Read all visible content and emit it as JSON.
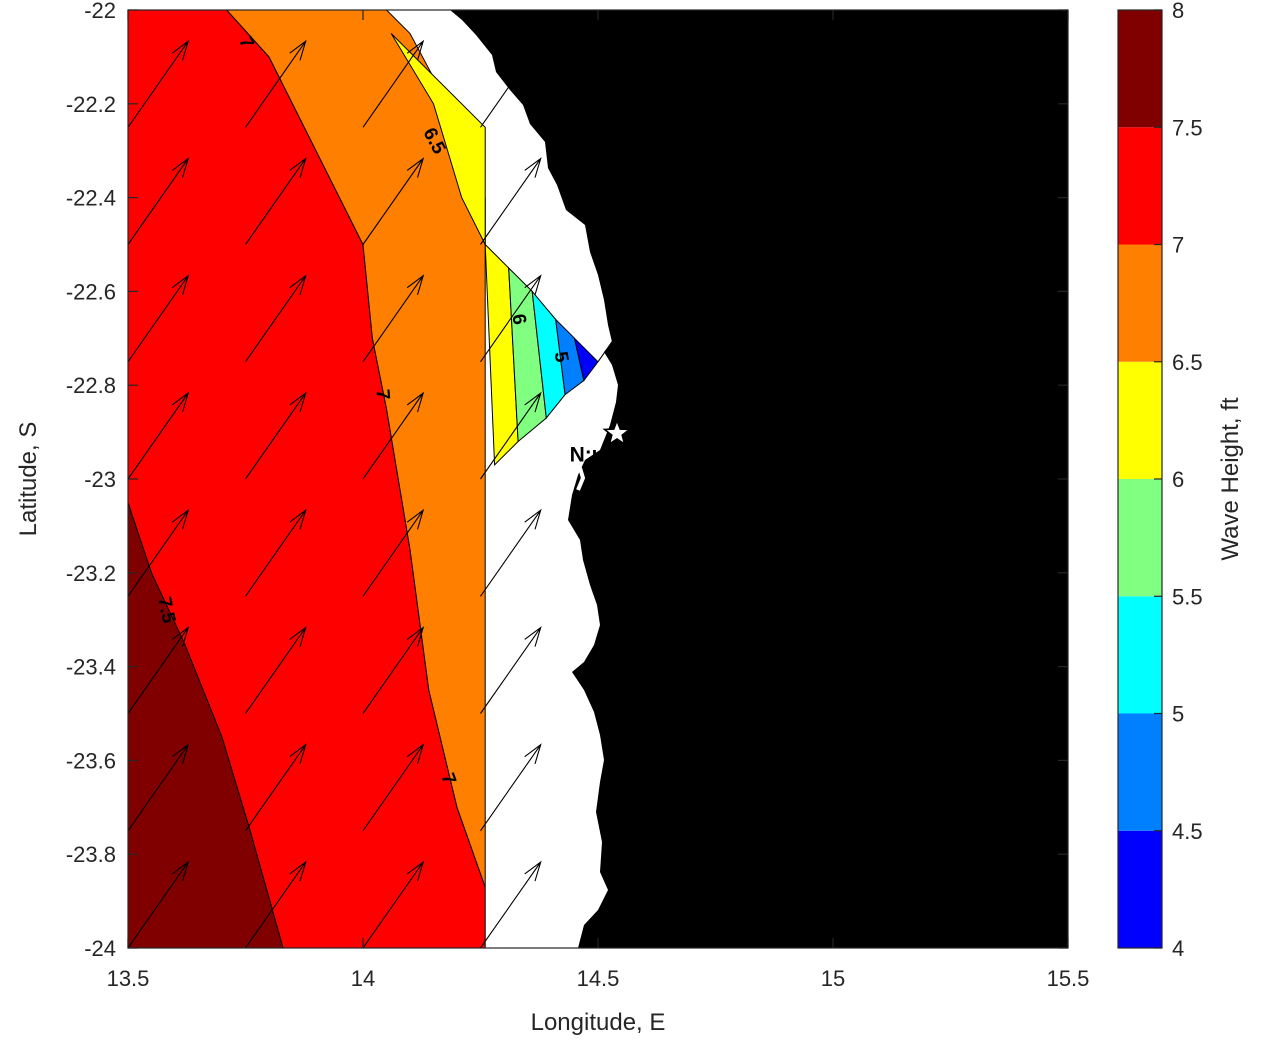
{
  "chart_data": {
    "type": "heatmap",
    "title": "",
    "xlabel": "Longitude, E",
    "ylabel": "Latitude, S",
    "xlim": [
      13.5,
      15.5
    ],
    "ylim": [
      -24,
      -22
    ],
    "x_ticks": [
      "13.5",
      "14",
      "14.5",
      "15",
      "15.5"
    ],
    "y_ticks": [
      "-22",
      "-22.2",
      "-22.4",
      "-22.6",
      "-22.8",
      "-23",
      "-23.2",
      "-23.4",
      "-23.6",
      "-23.8",
      "-24"
    ],
    "colorbar": {
      "label": "Wave Height, ft",
      "range": [
        4,
        8
      ],
      "ticks": [
        "4",
        "4.5",
        "5",
        "5.5",
        "6",
        "6.5",
        "7",
        "7.5",
        "8"
      ],
      "colors": [
        "#0000ff",
        "#0080ff",
        "#00ffff",
        "#80ff80",
        "#ffff00",
        "#ff8000",
        "#ff0000",
        "#800000"
      ]
    },
    "contour_labels": [
      {
        "text": "7",
        "lon": 13.75,
        "lat": -22.07,
        "angle": 65
      },
      {
        "text": "6.5",
        "lon": 14.15,
        "lat": -22.28,
        "angle": 62
      },
      {
        "text": "7",
        "lon": 14.04,
        "lat": -22.82,
        "angle": 85
      },
      {
        "text": "6",
        "lon": 14.33,
        "lat": -22.66,
        "angle": 80
      },
      {
        "text": "5",
        "lon": 14.42,
        "lat": -22.74,
        "angle": 80
      },
      {
        "text": "7.5",
        "lon": 13.58,
        "lat": -23.28,
        "angle": 78
      },
      {
        "text": "7",
        "lon": 14.18,
        "lat": -23.64,
        "angle": 70
      }
    ],
    "regions": [
      {
        "level": "7.5-8",
        "color": "#800000",
        "polygon": [
          [
            13.5,
            -23.05
          ],
          [
            13.55,
            -23.2
          ],
          [
            13.62,
            -23.35
          ],
          [
            13.7,
            -23.55
          ],
          [
            13.76,
            -23.75
          ],
          [
            13.83,
            -24
          ],
          [
            13.5,
            -24
          ]
        ]
      },
      {
        "level": "7-7.5",
        "color": "#ff0000",
        "polygon": [
          [
            13.5,
            -22
          ],
          [
            13.71,
            -22
          ],
          [
            13.8,
            -22.1
          ],
          [
            13.9,
            -22.3
          ],
          [
            14,
            -22.5
          ],
          [
            14.02,
            -22.7
          ],
          [
            14.05,
            -22.85
          ],
          [
            14.1,
            -23.15
          ],
          [
            14.14,
            -23.45
          ],
          [
            14.2,
            -23.7
          ],
          [
            14.26,
            -23.87
          ],
          [
            14.26,
            -24
          ],
          [
            13.83,
            -24
          ],
          [
            13.76,
            -23.75
          ],
          [
            13.7,
            -23.55
          ],
          [
            13.62,
            -23.35
          ],
          [
            13.55,
            -23.2
          ],
          [
            13.5,
            -23.05
          ]
        ]
      },
      {
        "level": "6.5-7",
        "color": "#ff8000",
        "polygon": [
          [
            13.71,
            -22
          ],
          [
            14.05,
            -22
          ],
          [
            14.1,
            -22.05
          ],
          [
            14.18,
            -22.2
          ],
          [
            14.26,
            -22.4
          ],
          [
            14.26,
            -22.5
          ],
          [
            14.26,
            -23
          ],
          [
            14.26,
            -23.87
          ],
          [
            14.2,
            -23.7
          ],
          [
            14.14,
            -23.45
          ],
          [
            14.1,
            -23.15
          ],
          [
            14.05,
            -22.85
          ],
          [
            14.02,
            -22.7
          ],
          [
            14,
            -22.5
          ],
          [
            13.9,
            -22.3
          ],
          [
            13.8,
            -22.1
          ]
        ]
      },
      {
        "level": "6-6.5",
        "color": "#ffff00",
        "polygon": [
          [
            14.06,
            -22.05
          ],
          [
            14.26,
            -22.25
          ],
          [
            14.26,
            -22.5
          ],
          [
            14.21,
            -22.4
          ],
          [
            14.15,
            -22.2
          ]
        ]
      },
      {
        "level": "6-6.5 (nearshore)",
        "color": "#ffff00",
        "polygon": [
          [
            14.26,
            -22.5
          ],
          [
            14.31,
            -22.55
          ],
          [
            14.33,
            -22.92
          ],
          [
            14.28,
            -22.97
          ]
        ]
      },
      {
        "level": "5.5-6",
        "color": "#80ff80",
        "polygon": [
          [
            14.31,
            -22.55
          ],
          [
            14.36,
            -22.6
          ],
          [
            14.39,
            -22.87
          ],
          [
            14.33,
            -22.92
          ]
        ]
      },
      {
        "level": "5-5.5",
        "color": "#00ffff",
        "polygon": [
          [
            14.36,
            -22.6
          ],
          [
            14.41,
            -22.66
          ],
          [
            14.43,
            -22.82
          ],
          [
            14.39,
            -22.87
          ]
        ]
      },
      {
        "level": "4.5-5",
        "color": "#0080ff",
        "polygon": [
          [
            14.41,
            -22.66
          ],
          [
            14.45,
            -22.7
          ],
          [
            14.47,
            -22.79
          ],
          [
            14.43,
            -22.82
          ]
        ]
      },
      {
        "level": "4-4.5",
        "color": "#0000ff",
        "polygon": [
          [
            14.45,
            -22.7
          ],
          [
            14.5,
            -22.75
          ],
          [
            14.47,
            -22.79
          ]
        ]
      }
    ],
    "wind_vectors": {
      "lon": [
        13.5,
        13.75,
        14.0,
        14.25,
        14.5
      ],
      "lat": [
        -22.25,
        -22.5,
        -22.75,
        -23.0,
        -23.25,
        -23.5,
        -23.75,
        -24.0
      ],
      "direction_deg_from_north": 35,
      "description": "uniform arrows pointing NNE"
    },
    "land_color": "#000000",
    "annotations": [
      {
        "text": "N:ul",
        "lon": 14.5,
        "lat": -22.95,
        "marker": "star"
      }
    ]
  }
}
